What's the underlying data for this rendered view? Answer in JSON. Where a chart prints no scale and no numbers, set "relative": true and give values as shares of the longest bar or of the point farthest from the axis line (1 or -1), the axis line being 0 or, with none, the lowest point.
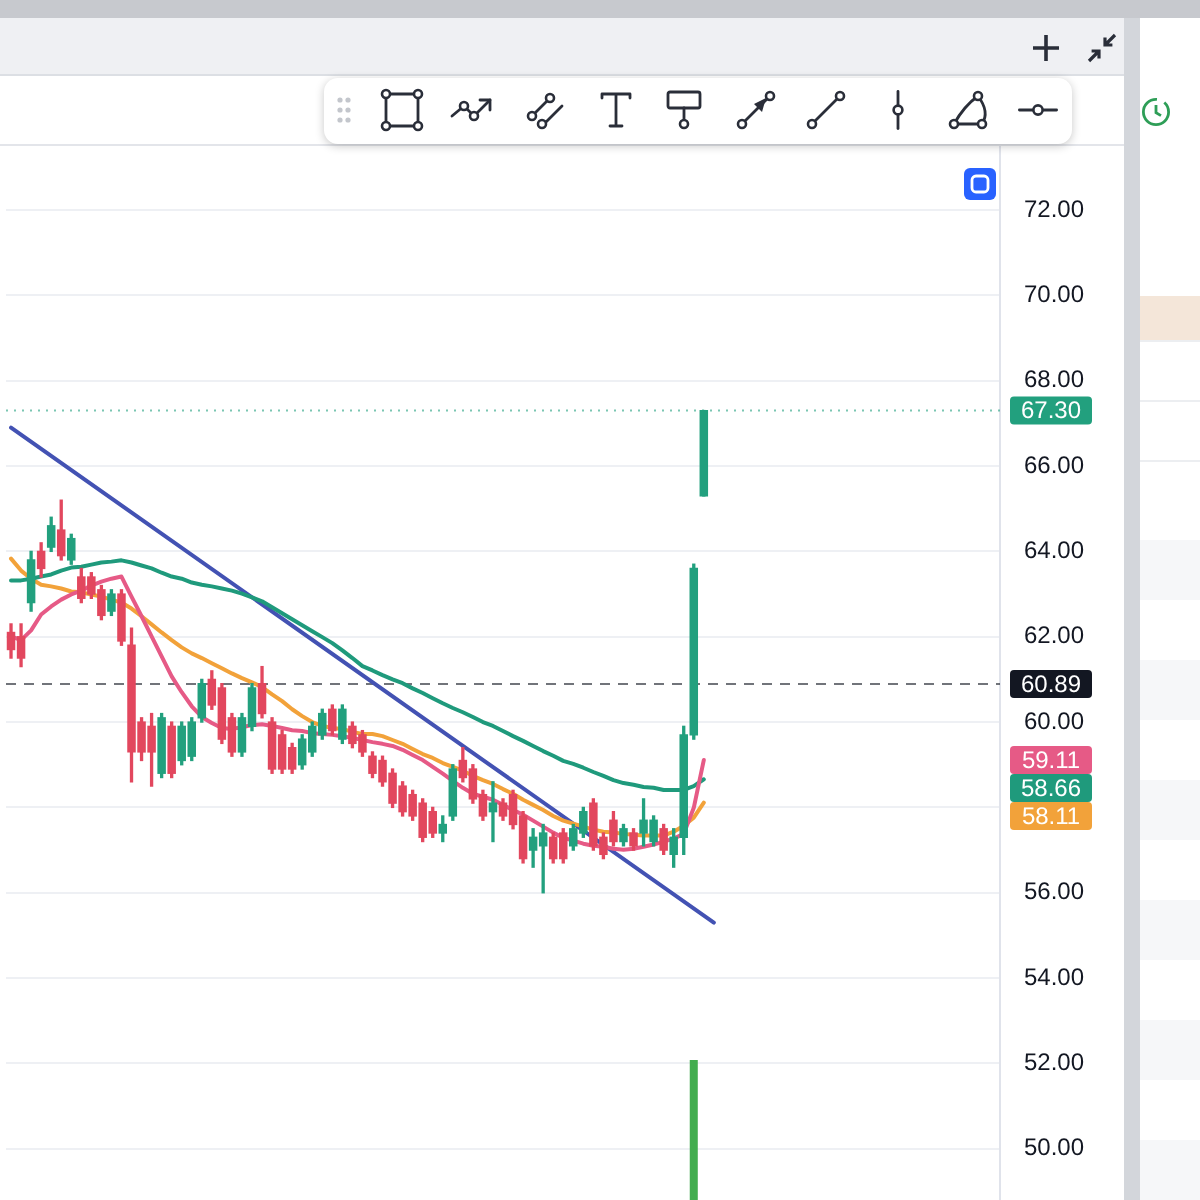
{
  "chart_data": [
    {
      "type": "candlestick",
      "categories": [
        null,
        null,
        null,
        null,
        null,
        null,
        null,
        null,
        null,
        null,
        null,
        null,
        null,
        null,
        null,
        null,
        null,
        null,
        null,
        null,
        null,
        null,
        null,
        null,
        null,
        null,
        null,
        null,
        null,
        null,
        null,
        null,
        null,
        null,
        null,
        null,
        null,
        null,
        null,
        null,
        null,
        null,
        null,
        null,
        null,
        null,
        null,
        null,
        null,
        null,
        null,
        null,
        null,
        null,
        null,
        null,
        null,
        null,
        null,
        null,
        null,
        null,
        null,
        null,
        null,
        null,
        null,
        null,
        null,
        null,
        null,
        null,
        null,
        null,
        null,
        null,
        null,
        null,
        null,
        null,
        null,
        null,
        null,
        null,
        null,
        null,
        null,
        null,
        null,
        null,
        null,
        null,
        null,
        null,
        null,
        null,
        null,
        null,
        null
      ],
      "ohlc": [
        [
          62.1,
          62.3,
          61.5,
          61.7
        ],
        [
          62.0,
          62.3,
          61.3,
          61.5
        ],
        [
          62.8,
          64.0,
          62.6,
          63.8
        ],
        [
          64.0,
          64.2,
          63.4,
          63.6
        ],
        [
          64.1,
          64.8,
          64.0,
          64.6
        ],
        [
          64.5,
          65.2,
          63.8,
          63.9
        ],
        [
          63.8,
          64.4,
          63.7,
          64.3
        ],
        [
          63.4,
          63.6,
          62.8,
          62.9
        ],
        [
          63.4,
          63.5,
          62.9,
          63.0
        ],
        [
          63.1,
          63.2,
          62.4,
          62.5
        ],
        [
          62.6,
          63.1,
          62.5,
          63.0
        ],
        [
          63.0,
          63.1,
          61.8,
          61.9
        ],
        [
          61.8,
          62.2,
          58.6,
          59.3
        ],
        [
          60.0,
          60.1,
          59.1,
          59.3
        ],
        [
          59.9,
          60.2,
          58.5,
          59.3
        ],
        [
          58.8,
          60.2,
          58.7,
          60.1
        ],
        [
          59.9,
          60.0,
          58.7,
          58.8
        ],
        [
          59.1,
          60.0,
          59.0,
          59.9
        ],
        [
          59.2,
          60.1,
          59.1,
          60.0
        ],
        [
          60.1,
          61.0,
          60.0,
          60.9
        ],
        [
          61.0,
          61.2,
          60.3,
          60.4
        ],
        [
          60.8,
          60.9,
          59.5,
          59.6
        ],
        [
          60.1,
          60.2,
          59.2,
          59.3
        ],
        [
          59.3,
          60.2,
          59.2,
          60.1
        ],
        [
          59.9,
          60.9,
          59.8,
          60.8
        ],
        [
          60.9,
          61.3,
          60.1,
          60.2
        ],
        [
          60.0,
          60.1,
          58.8,
          58.9
        ],
        [
          59.7,
          59.8,
          58.8,
          58.9
        ],
        [
          59.4,
          59.5,
          58.8,
          58.9
        ],
        [
          59.0,
          59.7,
          58.9,
          59.6
        ],
        [
          59.3,
          60.0,
          59.2,
          59.9
        ],
        [
          59.7,
          60.3,
          59.6,
          60.2
        ],
        [
          60.3,
          60.4,
          59.7,
          59.8
        ],
        [
          59.6,
          60.4,
          59.5,
          60.3
        ],
        [
          59.9,
          60.0,
          59.4,
          59.5
        ],
        [
          59.7,
          59.8,
          59.2,
          59.3
        ],
        [
          59.2,
          59.3,
          58.7,
          58.8
        ],
        [
          59.1,
          59.2,
          58.5,
          58.6
        ],
        [
          58.8,
          58.9,
          58.0,
          58.1
        ],
        [
          58.5,
          58.6,
          57.8,
          57.9
        ],
        [
          58.3,
          58.4,
          57.7,
          57.8
        ],
        [
          58.1,
          58.2,
          57.2,
          57.3
        ],
        [
          57.9,
          58.0,
          57.3,
          57.4
        ],
        [
          57.4,
          57.8,
          57.2,
          57.6
        ],
        [
          57.8,
          59.0,
          57.7,
          58.9
        ],
        [
          59.1,
          59.4,
          58.6,
          58.7
        ],
        [
          58.9,
          59.0,
          58.1,
          58.2
        ],
        [
          58.3,
          58.4,
          57.7,
          57.8
        ],
        [
          57.9,
          58.6,
          57.2,
          58.1
        ],
        [
          58.1,
          58.2,
          57.7,
          57.8
        ],
        [
          58.3,
          58.4,
          57.5,
          57.6
        ],
        [
          57.8,
          57.9,
          56.7,
          56.8
        ],
        [
          57.0,
          57.5,
          56.6,
          57.3
        ],
        [
          57.1,
          57.6,
          56.0,
          57.4
        ],
        [
          57.3,
          57.4,
          56.7,
          56.8
        ],
        [
          57.4,
          57.5,
          56.7,
          56.8
        ],
        [
          57.1,
          57.6,
          57.0,
          57.5
        ],
        [
          57.4,
          58.0,
          57.3,
          57.9
        ],
        [
          58.1,
          58.2,
          57.0,
          57.1
        ],
        [
          57.3,
          57.4,
          56.8,
          56.9
        ],
        [
          57.7,
          57.9,
          57.1,
          57.2
        ],
        [
          57.2,
          57.6,
          57.1,
          57.5
        ],
        [
          57.4,
          57.5,
          57.0,
          57.1
        ],
        [
          57.4,
          58.2,
          57.1,
          57.7
        ],
        [
          57.2,
          57.8,
          57.1,
          57.7
        ],
        [
          57.5,
          57.6,
          56.9,
          57.0
        ],
        [
          56.9,
          57.5,
          56.6,
          57.3
        ],
        [
          57.3,
          59.9,
          56.9,
          59.7
        ],
        [
          59.7,
          63.7,
          59.6,
          63.6
        ],
        [
          65.3,
          67.3,
          65.3,
          67.3
        ],
        null,
        null,
        null,
        null,
        null,
        null,
        null,
        null,
        null,
        null,
        null,
        null,
        null,
        null,
        null,
        null,
        null,
        null,
        null,
        null,
        null,
        null,
        null,
        null,
        null,
        null,
        null,
        null,
        null
      ],
      "colors": [
        "#e2475e",
        "#e2475e",
        "#22a07e",
        "#e2475e",
        "#22a07e",
        "#e2475e",
        "#22a07e",
        "#e2475e",
        "#e2475e",
        "#e2475e",
        "#22a07e",
        "#e2475e",
        "#e2475e",
        "#e2475e",
        "#e2475e",
        "#22a07e",
        "#e2475e",
        "#22a07e",
        "#22a07e",
        "#22a07e",
        "#e2475e",
        "#e2475e",
        "#e2475e",
        "#22a07e",
        "#22a07e",
        "#e2475e",
        "#e2475e",
        "#e2475e",
        "#e2475e",
        "#22a07e",
        "#22a07e",
        "#22a07e",
        "#e2475e",
        "#22a07e",
        "#e2475e",
        "#e2475e",
        "#e2475e",
        "#e2475e",
        "#e2475e",
        "#e2475e",
        "#e2475e",
        "#e2475e",
        "#e2475e",
        "#22a07e",
        "#22a07e",
        "#e2475e",
        "#e2475e",
        "#e2475e",
        "#22a07e",
        "#e2475e",
        "#e2475e",
        "#e2475e",
        "#22a07e",
        "#22a07e",
        "#e2475e",
        "#e2475e",
        "#22a07e",
        "#22a07e",
        "#e2475e",
        "#e2475e",
        "#e2475e",
        "#22a07e",
        "#e2475e",
        "#22a07e",
        "#22a07e",
        "#e2475e",
        "#22a07e",
        "#22a07e",
        "#22a07e",
        "#22a07e",
        null,
        null,
        null,
        null,
        null,
        null,
        null,
        null,
        null,
        null,
        null,
        null,
        null,
        null,
        null,
        null,
        null,
        null,
        null,
        null,
        null,
        null,
        null,
        null,
        null,
        null,
        null,
        null,
        null
      ],
      "series": [
        {
          "type": "line",
          "color": "#e65a86",
          "values": [
            62.01,
            61.92,
            62.15,
            62.52,
            62.71,
            62.87,
            62.99,
            63.08,
            63.2,
            63.29,
            63.36,
            63.41,
            62.94,
            62.48,
            62.01,
            61.54,
            61.07,
            60.7,
            60.37,
            60.12,
            59.98,
            59.86,
            59.84,
            59.88,
            59.93,
            59.95,
            59.91,
            59.86,
            59.81,
            59.79,
            59.74,
            59.72,
            59.7,
            59.67,
            59.63,
            59.58,
            59.53,
            59.49,
            59.44,
            59.35,
            59.23,
            59.11,
            58.95,
            58.79,
            58.62,
            58.46,
            58.32,
            58.25,
            58.18,
            58.06,
            57.94,
            57.83,
            57.69,
            57.55,
            57.41,
            57.29,
            57.22,
            57.15,
            57.1,
            57.08,
            57.03,
            57.01,
            57.03,
            57.08,
            57.13,
            57.2,
            57.27,
            57.38,
            57.99,
            59.11,
            null,
            null,
            null,
            null,
            null,
            null,
            null,
            null,
            null,
            null,
            null,
            null,
            null,
            null,
            null,
            null,
            null,
            null,
            null,
            null,
            null,
            null,
            null,
            null,
            null,
            null,
            null,
            null,
            null
          ]
        },
        {
          "type": "line",
          "color": "#1f9a7c",
          "values": [
            63.32,
            63.32,
            63.36,
            63.41,
            63.46,
            63.55,
            63.62,
            63.64,
            63.69,
            63.74,
            63.76,
            63.79,
            63.74,
            63.67,
            63.6,
            63.5,
            63.41,
            63.36,
            63.27,
            63.22,
            63.18,
            63.13,
            63.08,
            63.01,
            62.92,
            62.83,
            62.69,
            62.55,
            62.41,
            62.27,
            62.13,
            61.99,
            61.85,
            61.68,
            61.5,
            61.31,
            61.21,
            61.1,
            61.0,
            60.91,
            60.79,
            60.68,
            60.56,
            60.44,
            60.33,
            60.23,
            60.12,
            60.0,
            59.91,
            59.79,
            59.67,
            59.56,
            59.44,
            59.32,
            59.21,
            59.09,
            59.02,
            58.93,
            58.83,
            58.74,
            58.64,
            58.57,
            58.53,
            58.48,
            58.46,
            58.41,
            58.41,
            58.41,
            58.5,
            58.66,
            null,
            null,
            null,
            null,
            null,
            null,
            null,
            null,
            null,
            null,
            null,
            null,
            null,
            null,
            null,
            null,
            null,
            null,
            null,
            null,
            null,
            null,
            null,
            null,
            null,
            null,
            null,
            null,
            null
          ]
        },
        {
          "type": "line",
          "color": "#f2a23a",
          "values": [
            63.83,
            63.55,
            63.36,
            63.22,
            63.18,
            63.13,
            63.06,
            63.04,
            62.99,
            62.94,
            62.87,
            62.8,
            62.66,
            62.48,
            62.29,
            62.1,
            61.92,
            61.75,
            61.61,
            61.5,
            61.38,
            61.26,
            61.14,
            61.03,
            60.93,
            60.82,
            60.65,
            60.49,
            60.3,
            60.14,
            60.0,
            59.91,
            59.86,
            59.84,
            59.77,
            59.72,
            59.72,
            59.67,
            59.58,
            59.49,
            59.37,
            59.25,
            59.16,
            59.04,
            58.95,
            58.86,
            58.74,
            58.64,
            58.55,
            58.43,
            58.32,
            58.18,
            58.06,
            57.94,
            57.8,
            57.69,
            57.62,
            57.55,
            57.48,
            57.43,
            57.41,
            57.38,
            57.36,
            57.34,
            57.34,
            57.34,
            57.43,
            57.57,
            57.76,
            58.11,
            null,
            null,
            null,
            null,
            null,
            null,
            null,
            null,
            null,
            null,
            null,
            null,
            null,
            null,
            null,
            null,
            null,
            null,
            null,
            null,
            null,
            null,
            null,
            null,
            null,
            null,
            null,
            null,
            null
          ]
        },
        {
          "type": "line",
          "color": "#4352b3",
          "values": [
            66.9,
            null,
            null,
            null,
            null,
            null,
            null,
            null,
            null,
            null,
            null,
            null,
            null,
            null,
            null,
            null,
            null,
            null,
            null,
            null,
            null,
            null,
            null,
            null,
            null,
            null,
            null,
            null,
            null,
            null,
            null,
            null,
            null,
            null,
            null,
            null,
            null,
            null,
            null,
            null,
            null,
            null,
            null,
            null,
            null,
            null,
            null,
            null,
            null,
            null,
            null,
            null,
            null,
            null,
            null,
            null,
            null,
            null,
            null,
            null,
            null,
            null,
            null,
            null,
            null,
            null,
            null,
            null,
            null,
            null,
            55.3,
            null,
            null,
            null,
            null,
            null,
            null,
            null,
            null,
            null,
            null,
            null,
            null,
            null,
            null,
            null,
            null,
            null,
            null,
            null,
            null,
            null,
            null,
            null,
            null,
            null,
            null,
            null,
            null
          ]
        }
      ],
      "annotations": [
        "59.11",
        "58.66",
        "58.11"
      ],
      "ylim": [
        48.8,
        73.5
      ],
      "yticks": [
        {
          "value": 50,
          "label": "50.00"
        },
        {
          "value": 52,
          "label": "52.00"
        },
        {
          "value": 54,
          "label": "54.00"
        },
        {
          "value": 56,
          "label": "56.00"
        },
        {
          "value": 58,
          "label": null
        },
        {
          "value": 60,
          "label": "60.00"
        },
        {
          "value": 62,
          "label": "62.00"
        },
        {
          "value": 64,
          "label": "64.00"
        },
        {
          "value": 66,
          "label": "66.00"
        },
        {
          "value": 68,
          "label": "68.00"
        },
        {
          "value": 70,
          "label": "70.00"
        },
        {
          "value": 72,
          "label": "72.00"
        }
      ],
      "ref_lines": [
        {
          "axis": "y",
          "value": 67.3,
          "label": "67.30",
          "color": "#22a07e",
          "line_style": "dotted"
        },
        {
          "axis": "y",
          "value": 60.89,
          "label": "60.89",
          "color": "#131722",
          "line_style": "dashed"
        }
      ],
      "grid": "y",
      "tick_labels": "y"
    },
    {
      "type": "bar",
      "relative": true,
      "color": "#43ad4f",
      "tick_labels": false,
      "categories": [
        null,
        null,
        null,
        null,
        null,
        null,
        null,
        null,
        null,
        null,
        null,
        null,
        null,
        null,
        null,
        null,
        null,
        null,
        null,
        null,
        null,
        null,
        null,
        null,
        null,
        null,
        null,
        null,
        null,
        null,
        null,
        null,
        null,
        null,
        null,
        null,
        null,
        null,
        null,
        null,
        null,
        null,
        null,
        null,
        null,
        null,
        null,
        null,
        null,
        null,
        null,
        null,
        null,
        null,
        null,
        null,
        null,
        null,
        null,
        null,
        null,
        null,
        null,
        null,
        null,
        null,
        null,
        null,
        null,
        null,
        null,
        null,
        null,
        null,
        null,
        null,
        null,
        null,
        null,
        null,
        null,
        null,
        null,
        null,
        null,
        null,
        null,
        null,
        null,
        null,
        null,
        null,
        null,
        null,
        null,
        null,
        null,
        null,
        null
      ],
      "values": [
        null,
        null,
        null,
        null,
        null,
        null,
        null,
        null,
        null,
        null,
        null,
        null,
        null,
        null,
        null,
        null,
        null,
        null,
        null,
        null,
        null,
        null,
        null,
        null,
        null,
        null,
        null,
        null,
        null,
        null,
        null,
        null,
        null,
        null,
        null,
        null,
        null,
        null,
        null,
        null,
        null,
        null,
        null,
        null,
        null,
        null,
        null,
        null,
        null,
        null,
        null,
        null,
        null,
        null,
        null,
        null,
        null,
        null,
        null,
        null,
        null,
        null,
        null,
        null,
        null,
        null,
        null,
        null,
        1,
        null,
        null,
        null,
        null,
        null,
        null,
        null,
        null,
        null,
        null,
        null,
        null,
        null,
        null,
        null,
        null,
        null,
        null,
        null,
        null,
        null,
        null,
        null,
        null,
        null,
        null,
        null,
        null,
        null,
        null
      ]
    }
  ]
}
